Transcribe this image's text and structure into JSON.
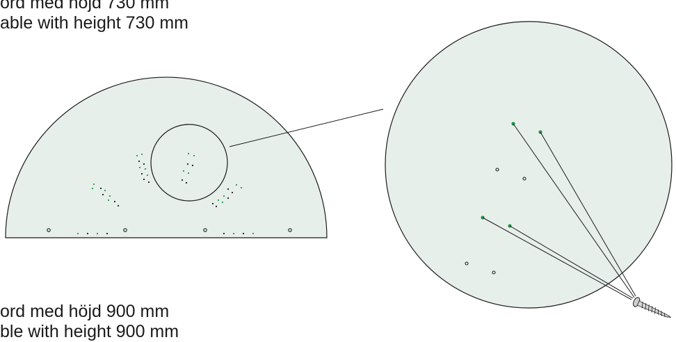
{
  "captions": {
    "table_730": {
      "sv": "ord med höjd 730 mm",
      "en": "able with height 730 mm"
    },
    "table_900": {
      "sv": "ord med höjd 900 mm",
      "en": "ble with height 900 mm"
    }
  },
  "colors": {
    "fill": "#e7efeb",
    "stroke": "#1a1a1a",
    "green_hole": "#1f9a4a",
    "black_hole": "#1a1a1a"
  },
  "icons": {
    "screw": "screw-icon"
  }
}
